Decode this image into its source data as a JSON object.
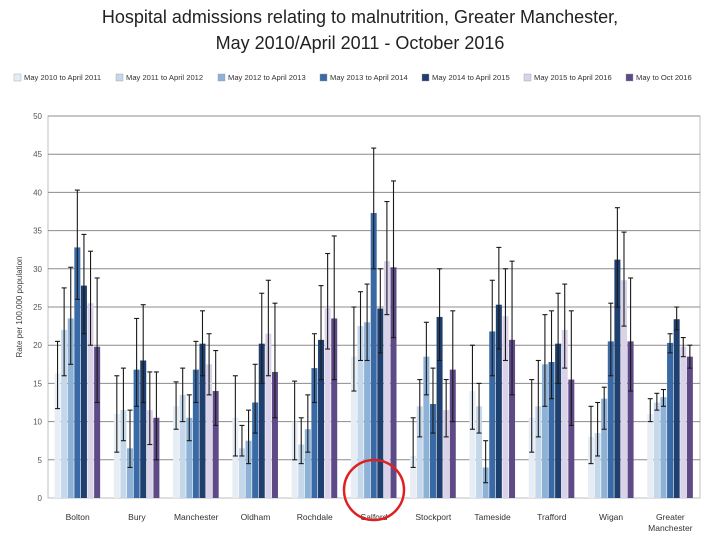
{
  "page": {
    "title_line1": "Hospital admissions relating to malnutrition, Greater Manchester,",
    "title_line2": "May 2010/April 2011 - October 2016"
  },
  "chart_data": {
    "type": "bar",
    "title": "Hospital admissions relating to malnutrition, Greater Manchester, May 2010/April 2011 - October 2016",
    "ylabel": "Rate per 100,000 population",
    "xlabel": "",
    "ylim": [
      0,
      50
    ],
    "yticks": [
      "0",
      "5",
      "10",
      "15",
      "20",
      "25",
      "30",
      "35",
      "40",
      "45",
      "50"
    ],
    "grid": true,
    "legend_position": "top",
    "categories": [
      "Bolton",
      "Bury",
      "Manchester",
      "Oldham",
      "Rochdale",
      "Salford",
      "Stockport",
      "Tameside",
      "Trafford",
      "Wigan",
      "Greater Manchester"
    ],
    "series": [
      {
        "name": "May 2010 to April 2011",
        "color": "#e6edf5",
        "values": [
          16.3,
          11.0,
          12.0,
          10.5,
          10.0,
          18.5,
          5.5,
          14.0,
          10.5,
          8.0,
          11.0
        ],
        "err_low": [
          11.7,
          6.0,
          9.0,
          5.5,
          5.0,
          14.0,
          4.0,
          9.0,
          6.0,
          4.5,
          10.0
        ],
        "err_high": [
          20.5,
          16.0,
          15.2,
          16.0,
          15.3,
          25.0,
          10.5,
          20.0,
          15.5,
          12.0,
          13.0
        ]
      },
      {
        "name": "May 2011 to April 2012",
        "color": "#c5d7ea",
        "values": [
          22.0,
          11.5,
          13.5,
          6.5,
          7.0,
          22.5,
          12.0,
          12.0,
          12.0,
          8.5,
          12.5
        ],
        "err_low": [
          16.0,
          7.5,
          10.0,
          5.5,
          4.5,
          18.0,
          8.0,
          8.5,
          8.0,
          5.5,
          11.5
        ],
        "err_high": [
          27.5,
          17.0,
          17.0,
          9.5,
          10.5,
          27.0,
          15.5,
          15.0,
          18.0,
          12.5,
          13.7
        ]
      },
      {
        "name": "May 2012 to April 2013",
        "color": "#8eb1d6",
        "values": [
          23.5,
          6.5,
          10.5,
          7.5,
          9.0,
          23.0,
          18.5,
          4.0,
          17.5,
          13.0,
          13.2
        ],
        "err_low": [
          17.5,
          4.0,
          7.5,
          4.5,
          6.0,
          18.0,
          13.5,
          2.0,
          12.0,
          9.0,
          12.0
        ],
        "err_high": [
          30.2,
          11.5,
          13.5,
          11.5,
          13.5,
          28.0,
          23.0,
          7.5,
          24.0,
          14.5,
          14.2
        ]
      },
      {
        "name": "May 2013 to April 2014",
        "color": "#3a6aa5",
        "values": [
          32.8,
          16.8,
          16.8,
          12.5,
          17.0,
          37.3,
          12.3,
          21.8,
          17.8,
          20.5,
          20.3
        ],
        "err_low": [
          26.0,
          12.0,
          12.5,
          8.5,
          12.5,
          30.0,
          8.5,
          16.0,
          13.0,
          16.0,
          19.0
        ],
        "err_high": [
          40.3,
          23.5,
          20.5,
          17.5,
          21.5,
          45.8,
          17.0,
          28.5,
          24.5,
          25.5,
          21.5
        ]
      },
      {
        "name": "May 2014 to April 2015",
        "color": "#1f3f6e",
        "values": [
          27.8,
          18.0,
          20.2,
          20.2,
          20.7,
          24.8,
          23.7,
          25.3,
          20.2,
          31.2,
          23.4
        ],
        "err_low": [
          21.5,
          12.5,
          16.0,
          15.0,
          15.5,
          19.0,
          18.0,
          19.5,
          15.0,
          25.0,
          22.0
        ],
        "err_high": [
          34.5,
          25.3,
          24.5,
          26.8,
          27.8,
          30.0,
          30.0,
          32.8,
          26.8,
          38.0,
          25.0
        ]
      },
      {
        "name": "May 2015 to April 2016",
        "color": "#d9d2e9",
        "values": [
          25.5,
          11.5,
          17.5,
          21.5,
          25.0,
          31.0,
          11.5,
          23.8,
          22.0,
          28.5,
          19.8
        ],
        "err_low": [
          20.0,
          7.0,
          13.5,
          16.0,
          19.5,
          24.0,
          8.0,
          18.0,
          17.0,
          22.5,
          18.5
        ],
        "err_high": [
          32.3,
          16.5,
          21.5,
          28.5,
          32.0,
          38.8,
          15.5,
          30.0,
          28.0,
          34.8,
          21.0
        ]
      },
      {
        "name": "May to Oct 2016",
        "color": "#5e4a86",
        "values": [
          19.8,
          10.5,
          14.0,
          16.5,
          23.5,
          30.2,
          16.8,
          20.7,
          15.5,
          20.5,
          18.5
        ],
        "err_low": [
          12.5,
          5.0,
          9.5,
          10.5,
          15.5,
          21.0,
          10.0,
          13.5,
          9.5,
          14.0,
          17.0
        ],
        "err_high": [
          28.8,
          16.5,
          19.3,
          25.5,
          34.3,
          41.5,
          24.5,
          31.0,
          24.5,
          28.8,
          20.0
        ]
      }
    ]
  },
  "annotation": {
    "type": "circle",
    "target": "Salford",
    "color": "#e02020"
  }
}
